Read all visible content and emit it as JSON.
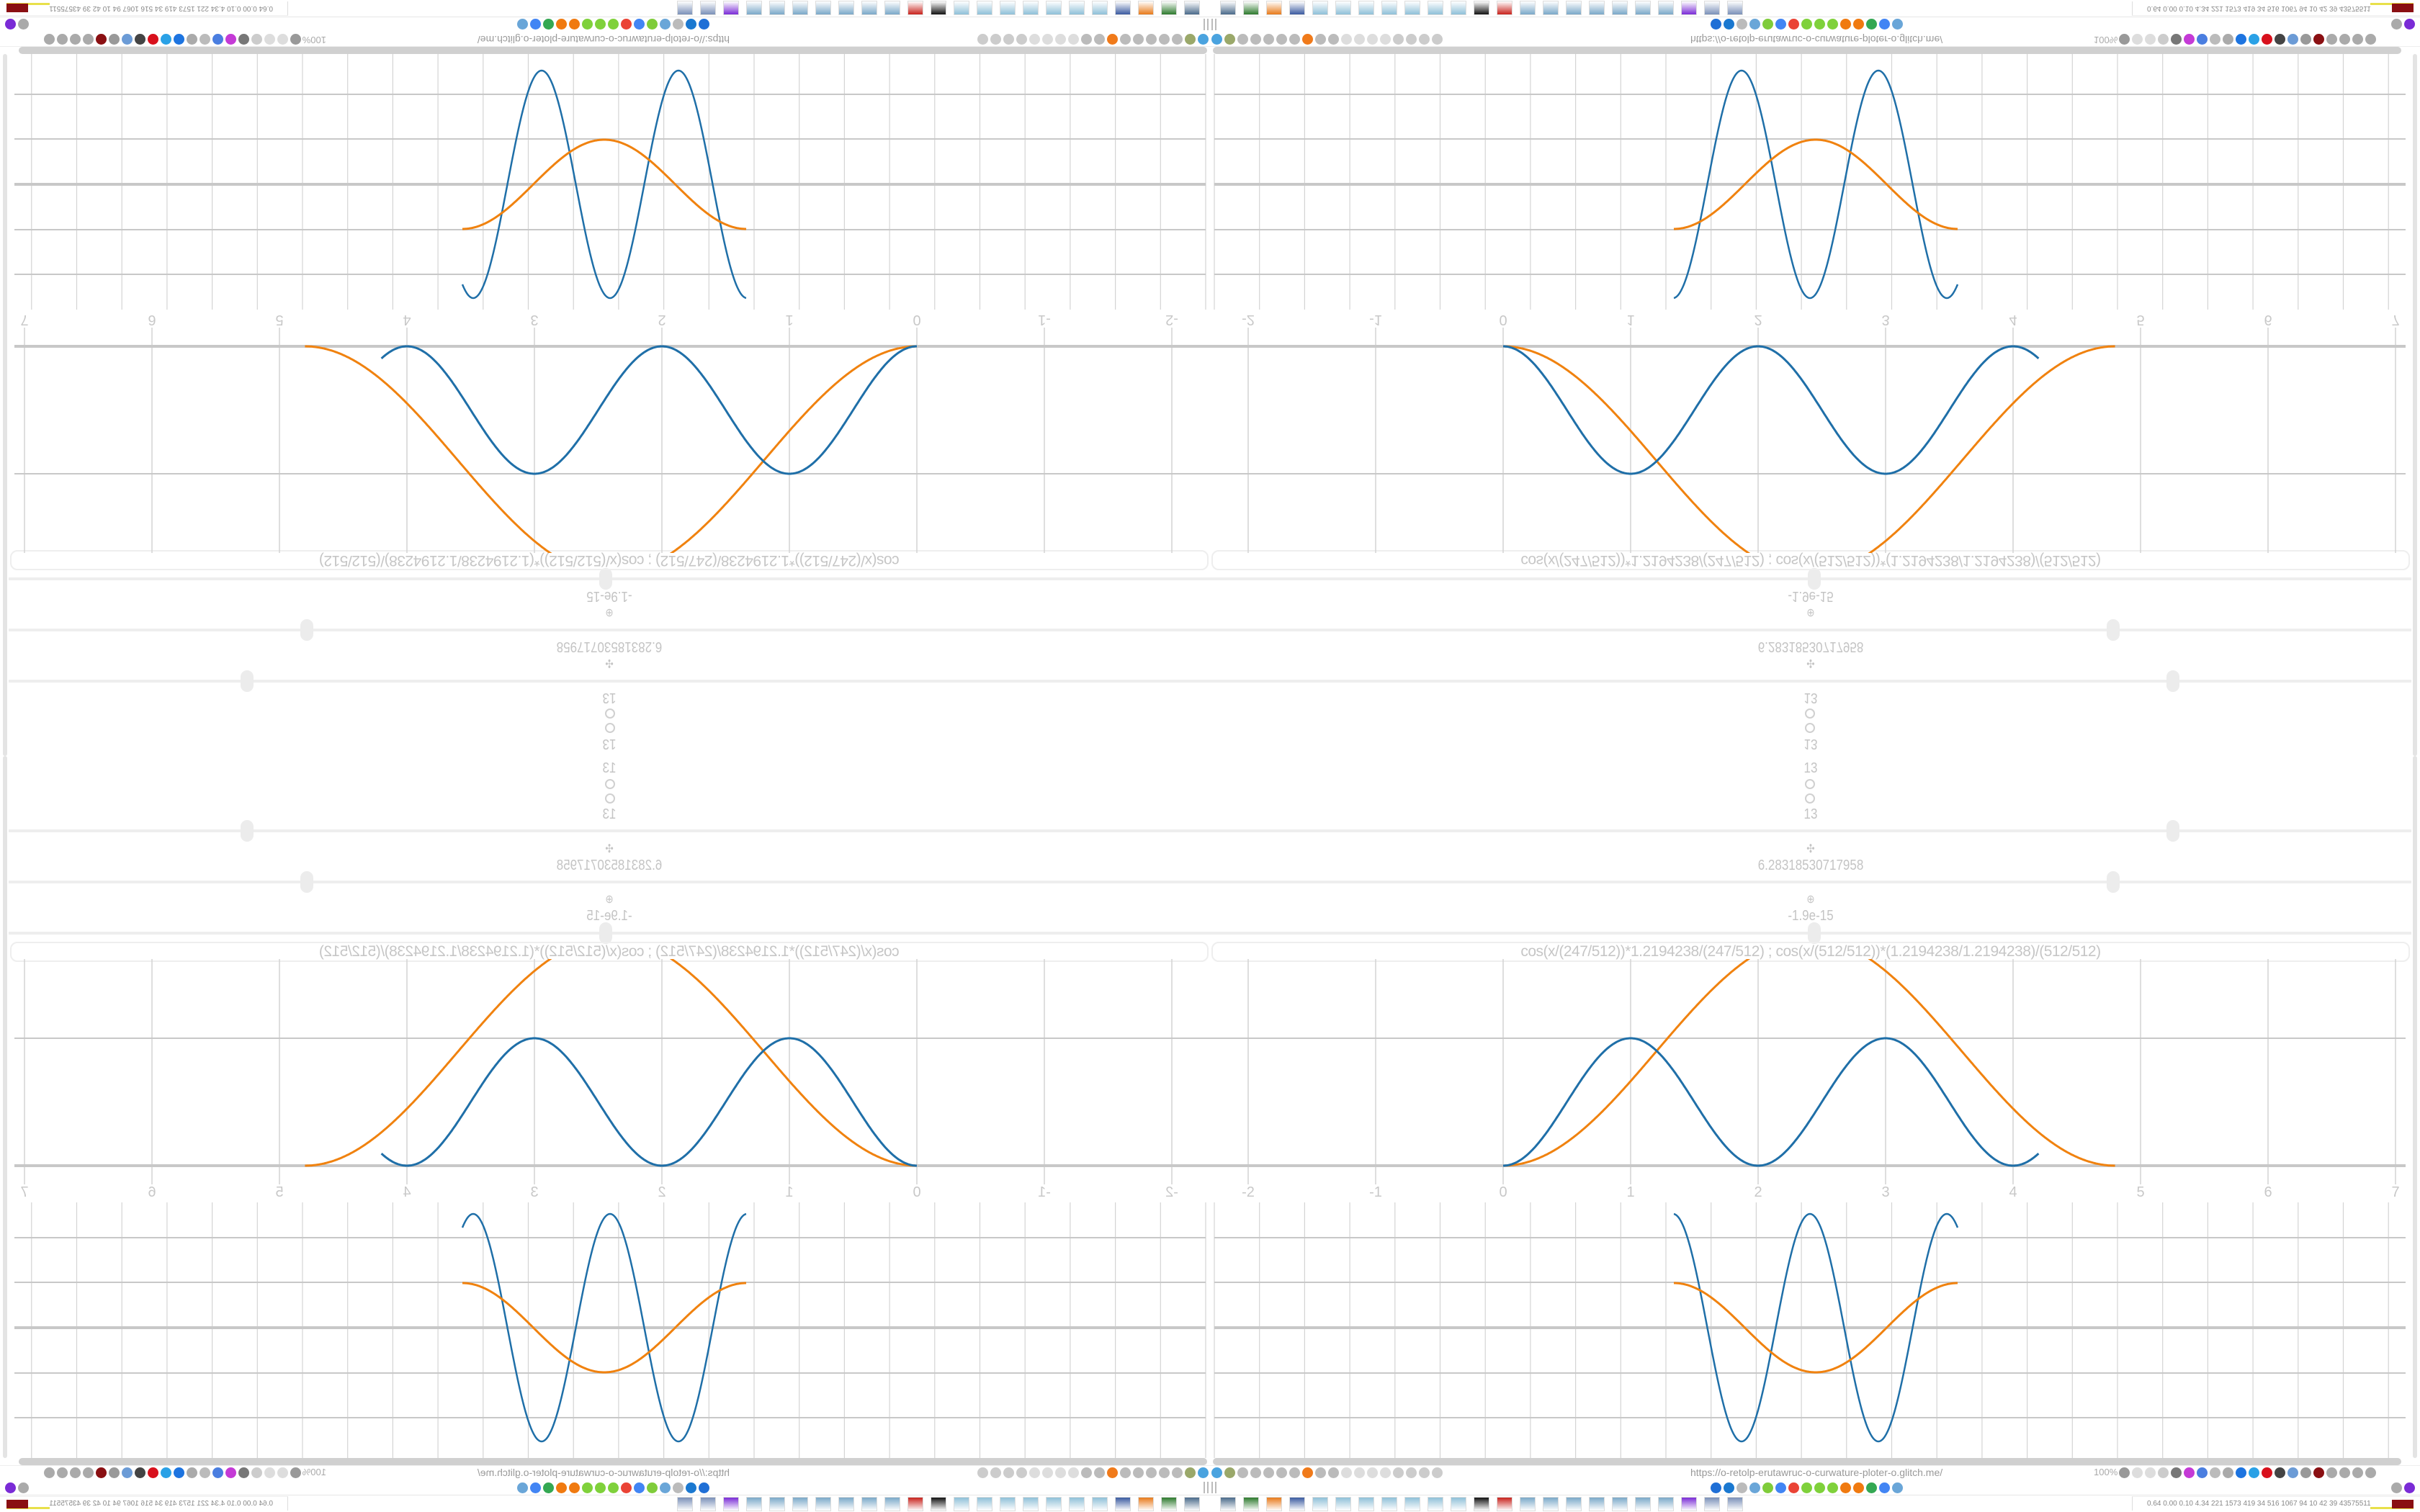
{
  "controls": {
    "top_value": "13",
    "value_13": "13",
    "value_2pi": "6.28318530717958",
    "value_small": "-1.9e-15",
    "slider_levels": [
      0.8,
      0.75,
      0.5
    ]
  },
  "expression": {
    "text": "cos(x/(247/512))*1.2194238/(247/512)   ;   cos(x/(512/512))*(1.2194238/1.2194238)/(512/512)"
  },
  "graph": {
    "x_tick_labels": [
      "-2",
      "-1",
      "0",
      "1",
      "2",
      "3",
      "4",
      "5",
      "6",
      "7"
    ],
    "colors": {
      "series_a": "#1f6fa8",
      "series_b": "#f0820f",
      "grid": "#d4d4d4",
      "axis": "#c8c8c8"
    }
  },
  "browser": {
    "url": "https://o-retolp-erutawruc-o-curwature-ploter-o.glitch.me/",
    "zoom_level": "100%",
    "toolbar_left_icons": [
      {
        "name": "filter-icon",
        "color": "#4aa3df"
      },
      {
        "name": "extension-icon",
        "color": "#9aa86a"
      },
      {
        "name": "globe-icon",
        "color": "#bbb"
      },
      {
        "name": "globe-icon",
        "color": "#bbb"
      },
      {
        "name": "headphones-icon",
        "color": "#bbb"
      },
      {
        "name": "globe-icon",
        "color": "#bbb"
      },
      {
        "name": "pen-icon",
        "color": "#bbb"
      },
      {
        "name": "firefox-icon",
        "color": "#f07a1a"
      },
      {
        "name": "gear-icon",
        "color": "#bbb"
      },
      {
        "name": "globe-icon",
        "color": "#bbb"
      },
      {
        "name": "dot-icon",
        "color": "#ddd"
      },
      {
        "name": "dot-icon",
        "color": "#ddd"
      },
      {
        "name": "dot-icon",
        "color": "#ddd"
      },
      {
        "name": "dot-icon",
        "color": "#ddd"
      },
      {
        "name": "folder-icon",
        "color": "#ccc"
      },
      {
        "name": "back-icon",
        "color": "#ccc"
      },
      {
        "name": "shield-icon",
        "color": "#ccc"
      },
      {
        "name": "lock-icon",
        "color": "#ccc"
      }
    ],
    "toolbar_right_icons": [
      {
        "name": "translate-icon",
        "color": "#999"
      },
      {
        "name": "star-icon",
        "color": "#ddd"
      },
      {
        "name": "forward-icon",
        "color": "#ddd"
      },
      {
        "name": "reload-icon",
        "color": "#ccc"
      },
      {
        "name": "download-icon",
        "color": "#777"
      },
      {
        "name": "pen-icon",
        "color": "#c43ad6"
      },
      {
        "name": "extension-icon",
        "color": "#4a7ee0"
      },
      {
        "name": "extension-icon",
        "color": "#bbb"
      },
      {
        "name": "gear-icon",
        "color": "#aaa"
      },
      {
        "name": "plus-icon",
        "color": "#1d74e0"
      },
      {
        "name": "extension-icon",
        "color": "#2aa1e6"
      },
      {
        "name": "record-icon",
        "color": "#d8101c"
      },
      {
        "name": "trash-icon",
        "color": "#444"
      },
      {
        "name": "extension-icon",
        "color": "#6b9bd6"
      },
      {
        "name": "extension-icon",
        "color": "#999"
      },
      {
        "name": "extension-icon",
        "color": "#8a0f12"
      },
      {
        "name": "extension-icon",
        "color": "#aaa"
      },
      {
        "name": "extension-icon",
        "color": "#aaa"
      },
      {
        "name": "wrench-icon",
        "color": "#aaa"
      },
      {
        "name": "gear-icon",
        "color": "#aaa"
      }
    ],
    "bookmark_icons": [
      {
        "name": "mail-icon",
        "color": "#1f6fd6"
      },
      {
        "name": "drop-icon",
        "color": "#1a78d0"
      },
      {
        "name": "mute-icon",
        "color": "#bbb"
      },
      {
        "name": "cube-icon",
        "color": "#6aa6d8"
      },
      {
        "name": "pen-icon",
        "color": "#7fcc3a"
      },
      {
        "name": "google-icon",
        "color": "#4285f4"
      },
      {
        "name": "google-icon",
        "color": "#ea4335"
      },
      {
        "name": "google-icon",
        "color": "#7fd13b"
      },
      {
        "name": "google-icon",
        "color": "#7fd13b"
      },
      {
        "name": "google-icon",
        "color": "#7fd13b"
      },
      {
        "name": "gear-icon",
        "color": "#f07a10"
      },
      {
        "name": "gear-icon",
        "color": "#f07a10"
      },
      {
        "name": "google-icon",
        "color": "#34a853"
      },
      {
        "name": "google-icon",
        "color": "#4285f4"
      },
      {
        "name": "cube-icon",
        "color": "#6aa6d8"
      }
    ],
    "bookmark_right_icons": [
      {
        "name": "chevron-up-icon",
        "color": "#aaa"
      },
      {
        "name": "extension-icon",
        "color": "#7a2bd6"
      }
    ]
  },
  "taskbar": {
    "apps": [
      {
        "name": "monitor-icon",
        "color": "#4a6a8a"
      },
      {
        "name": "terminal-icon",
        "color": "#2d7a2d"
      },
      {
        "name": "firefox-icon",
        "color": "#e87a1a"
      },
      {
        "name": "save-icon",
        "color": "#3a5aa0"
      },
      {
        "name": "notepad-icon",
        "color": "#8fc0d8"
      },
      {
        "name": "notepad-icon",
        "color": "#8fc0d8"
      },
      {
        "name": "notepad-icon",
        "color": "#8fc0d8"
      },
      {
        "name": "notepad-icon",
        "color": "#8fc0d8"
      },
      {
        "name": "notepad-icon",
        "color": "#8fc0d8"
      },
      {
        "name": "notepad-icon",
        "color": "#8fc0d8"
      },
      {
        "name": "notepad-icon",
        "color": "#8fc0d8"
      },
      {
        "name": "inkscape-icon",
        "color": "#111"
      },
      {
        "name": "app-icon",
        "color": "#c8221c"
      },
      {
        "name": "calculator-icon",
        "color": "#7aa8c8"
      },
      {
        "name": "calculator-icon",
        "color": "#7aa8c8"
      },
      {
        "name": "calculator-icon",
        "color": "#7aa8c8"
      },
      {
        "name": "calculator-icon",
        "color": "#7aa8c8"
      },
      {
        "name": "calculator-icon",
        "color": "#7aa8c8"
      },
      {
        "name": "calculator-icon",
        "color": "#7aa8c8"
      },
      {
        "name": "calculator-icon",
        "color": "#7aa8c8"
      },
      {
        "name": "extension-icon",
        "color": "#7a2bd6"
      },
      {
        "name": "document-icon",
        "color": "#7a90b8"
      },
      {
        "name": "document-icon",
        "color": "#7a90b8"
      }
    ],
    "tray_stats": "0.64 0.00 0.10 4.34  221  1573  419   34   516  1067  94    10    42    39  43575511"
  }
}
